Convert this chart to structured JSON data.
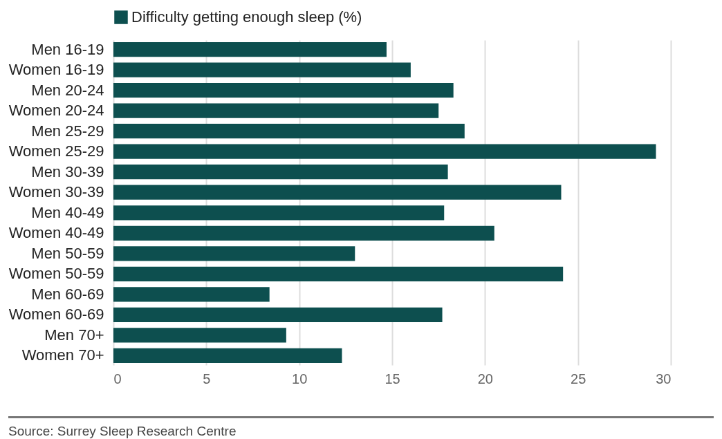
{
  "chart_data": {
    "type": "bar",
    "orientation": "horizontal",
    "categories": [
      "Men 16-19",
      "Women 16-19",
      "Men 20-24",
      "Women 20-24",
      "Men 25-29",
      "Women 25-29",
      "Men 30-39",
      "Women 30-39",
      "Men 40-49",
      "Women 40-49",
      "Men 50-59",
      "Women 50-59",
      "Men 60-69",
      "Women 60-69",
      "Men 70+",
      "Women 70+"
    ],
    "series": [
      {
        "name": "Difficulty getting enough sleep (%)",
        "color": "#0d4f4f",
        "values": [
          14.7,
          16.0,
          18.3,
          17.5,
          18.9,
          29.2,
          18.0,
          24.1,
          17.8,
          20.5,
          13.0,
          24.2,
          8.4,
          17.7,
          9.3,
          12.3
        ]
      }
    ],
    "xlim": [
      0,
      30
    ],
    "xticks": [
      0,
      5,
      10,
      15,
      20,
      25,
      30
    ],
    "grid": "x",
    "legend": "top left",
    "annotations": [
      "Source: Surrey Sleep Research Centre"
    ]
  }
}
